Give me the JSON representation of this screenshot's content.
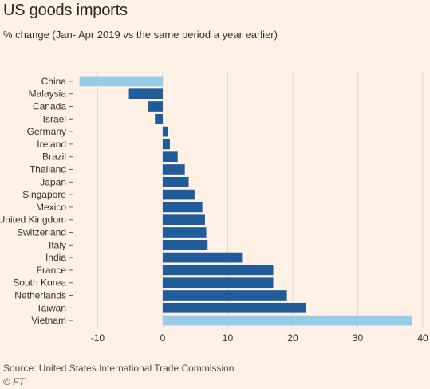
{
  "header": {
    "title": "US goods imports",
    "subtitle": "% change (Jan- Apr 2019 vs the same period a year earlier)"
  },
  "footer": {
    "source": "Source: United States International Trade Commission",
    "credit": "© FT"
  },
  "colors": {
    "background": "#FFF1E5",
    "bar_dark": "#1F5C99",
    "bar_highlight": "#96CCE8",
    "grid": "#E3D7CB"
  },
  "chart_data": {
    "type": "bar",
    "orientation": "horizontal",
    "title": "US goods imports",
    "subtitle": "% change (Jan- Apr 2019 vs the same period a year earlier)",
    "categories": [
      "China",
      "Malaysia",
      "Canada",
      "Israel",
      "Germany",
      "Ireland",
      "Brazil",
      "Thailand",
      "Japan",
      "Singapore",
      "Mexico",
      "United Kingdom",
      "Switzerland",
      "Italy",
      "India",
      "France",
      "South Korea",
      "Netherlands",
      "Taiwan",
      "Vietnam"
    ],
    "values": [
      -12.8,
      -5.2,
      -2.2,
      -1.2,
      0.8,
      1.1,
      2.3,
      3.4,
      4.0,
      4.9,
      6.1,
      6.5,
      6.7,
      6.9,
      12.2,
      17.0,
      17.0,
      19.1,
      22.0,
      38.4
    ],
    "highlighted": [
      "China",
      "Vietnam"
    ],
    "xlim": [
      -13,
      40
    ],
    "xticks": [
      -10,
      0,
      10,
      20,
      30,
      40
    ],
    "xlabel": "",
    "ylabel": "",
    "grid": "vertical"
  }
}
